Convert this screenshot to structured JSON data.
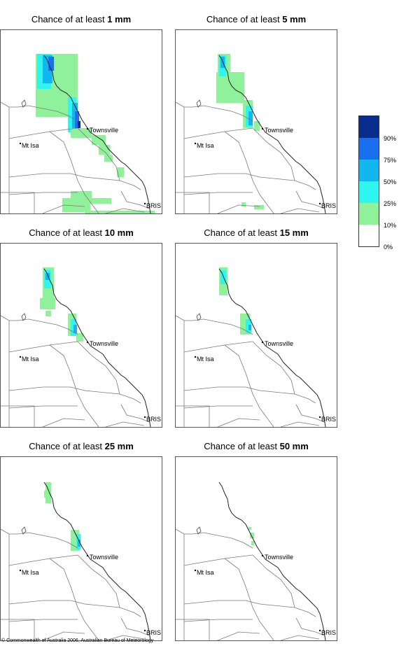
{
  "panels": [
    {
      "title_prefix": "Chance of at least ",
      "amount": "1 mm"
    },
    {
      "title_prefix": "Chance of at least ",
      "amount": "5 mm"
    },
    {
      "title_prefix": "Chance of at least ",
      "amount": "10 mm"
    },
    {
      "title_prefix": "Chance of at least ",
      "amount": "15 mm"
    },
    {
      "title_prefix": "Chance of at least ",
      "amount": "25 mm"
    },
    {
      "title_prefix": "Chance of at least ",
      "amount": "50 mm"
    }
  ],
  "towns": {
    "townsville": "Townsville",
    "mt_isa": "Mt Isa",
    "brisbane": "BRIS"
  },
  "legend": {
    "labels": [
      "90%",
      "75%",
      "50%",
      "25%",
      "10%",
      "0%"
    ],
    "colors": [
      "#0a2c8c",
      "#1a6ef0",
      "#12b7ef",
      "#2ff5f0",
      "#8ff29a",
      "#ffffff"
    ]
  },
  "copyright": "© Commonwealth of Australia 2006, Australian Bureau of Meteorology"
}
